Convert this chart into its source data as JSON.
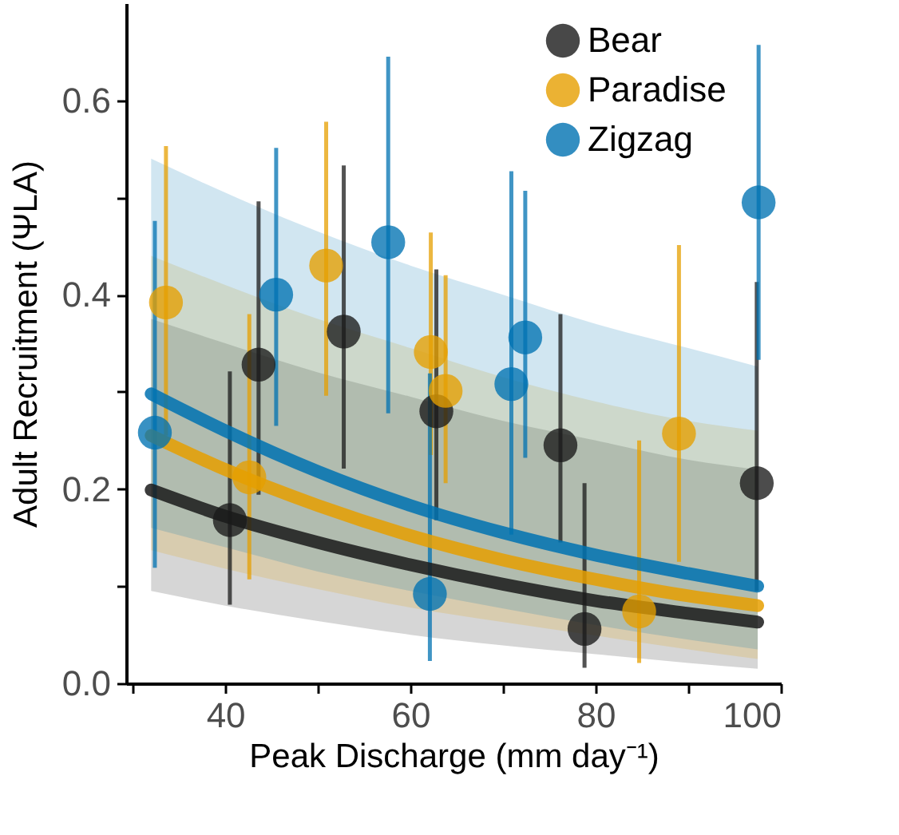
{
  "chart_data": {
    "type": "scatter",
    "xlabel": "Peak Discharge (mm day⁻¹)",
    "ylabel": "Adult Recruitment (ΨLA)",
    "xlim": [
      29.3,
      100
    ],
    "ylim": [
      0,
      0.7
    ],
    "xticks": [
      {
        "value": 30,
        "label": null
      },
      40,
      {
        "value": 50,
        "label": null
      },
      60,
      {
        "value": 70,
        "label": null
      },
      80,
      {
        "value": 90,
        "label": null
      },
      100
    ],
    "yticks": [
      {
        "value": 0,
        "label": "0.0"
      },
      {
        "value": 0.1,
        "label": null
      },
      0.2,
      {
        "value": 0.3,
        "label": null
      },
      0.4,
      {
        "value": 0.5,
        "label": null
      },
      0.6
    ],
    "grid": false,
    "legend": "top right",
    "marker": "circle",
    "series": [
      {
        "type": "line",
        "marker": "none",
        "line_style": "solid",
        "color": "#1a1a1a",
        "x": [
          32,
          40,
          50,
          60,
          70,
          80,
          90,
          97.5
        ],
        "values": [
          0.199,
          0.172,
          0.145,
          0.122,
          0.102,
          0.085,
          0.072,
          0.063
        ],
        "lower": [
          0.095,
          0.08,
          0.064,
          0.05,
          0.039,
          0.03,
          0.021,
          0.015
        ],
        "upper": [
          0.375,
          0.35,
          0.32,
          0.295,
          0.27,
          0.25,
          0.23,
          0.22
        ]
      },
      {
        "type": "line",
        "marker": "none",
        "line_style": "solid",
        "color": "#e69f00",
        "x": [
          32,
          40,
          50,
          60,
          70,
          80,
          90,
          97.5
        ],
        "values": [
          0.255,
          0.22,
          0.183,
          0.152,
          0.127,
          0.107,
          0.09,
          0.08
        ],
        "lower": [
          0.137,
          0.118,
          0.097,
          0.078,
          0.063,
          0.049,
          0.035,
          0.025
        ],
        "upper": [
          0.44,
          0.41,
          0.375,
          0.345,
          0.315,
          0.29,
          0.27,
          0.26
        ]
      },
      {
        "type": "line",
        "marker": "none",
        "line_style": "solid",
        "color": "#0072b2",
        "x": [
          32,
          40,
          50,
          60,
          70,
          80,
          90,
          97.5
        ],
        "values": [
          0.298,
          0.26,
          0.218,
          0.183,
          0.155,
          0.132,
          0.113,
          0.1
        ],
        "lower": [
          0.16,
          0.14,
          0.115,
          0.095,
          0.077,
          0.06,
          0.045,
          0.035
        ],
        "upper": [
          0.54,
          0.505,
          0.465,
          0.43,
          0.4,
          0.37,
          0.345,
          0.326
        ]
      },
      {
        "name": "Bear",
        "color": "#1a1a1a",
        "x": [
          40.5,
          43.6,
          52.8,
          62.8,
          76.2,
          78.8,
          97.4
        ],
        "values": [
          0.168,
          0.328,
          0.362,
          0.28,
          0.245,
          0.056,
          0.206
        ],
        "errors": [
          [
            0.081,
            0.321
          ],
          [
            0.194,
            0.496
          ],
          [
            0.221,
            0.533
          ],
          [
            0.168,
            0.426
          ],
          [
            0.145,
            0.38
          ],
          [
            0.016,
            0.206
          ],
          [
            0.095,
            0.413
          ]
        ]
      },
      {
        "name": "Paradise",
        "color": "#e69f00",
        "x": [
          33.6,
          42.6,
          50.9,
          62.2,
          63.8,
          84.7,
          89.0
        ],
        "values": [
          0.392,
          0.212,
          0.43,
          0.341,
          0.301,
          0.074,
          0.257
        ],
        "errors": [
          [
            0.255,
            0.553
          ],
          [
            0.107,
            0.38
          ],
          [
            0.296,
            0.578
          ],
          [
            0.235,
            0.464
          ],
          [
            0.206,
            0.42
          ],
          [
            0.021,
            0.25
          ],
          [
            0.125,
            0.451
          ]
        ]
      },
      {
        "name": "Zigzag",
        "color": "#0072b2",
        "x": [
          32.4,
          45.5,
          57.6,
          62.1,
          70.9,
          72.4,
          97.6
        ],
        "values": [
          0.258,
          0.4,
          0.454,
          0.092,
          0.308,
          0.356,
          0.495
        ],
        "errors": [
          [
            0.119,
            0.476
          ],
          [
            0.265,
            0.551
          ],
          [
            0.278,
            0.645
          ],
          [
            0.023,
            0.319
          ],
          [
            0.153,
            0.527
          ],
          [
            0.232,
            0.507
          ],
          [
            0.333,
            0.657
          ]
        ]
      }
    ]
  }
}
